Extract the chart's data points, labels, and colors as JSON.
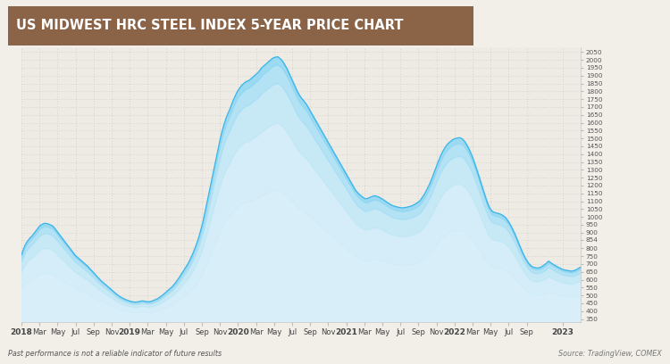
{
  "title": "US MIDWEST HRC STEEL INDEX 5-YEAR PRICE CHART",
  "title_bg_color": "#8B6347",
  "title_text_color": "#FFFFFF",
  "bg_color": "#F2EFE9",
  "plot_bg_color": "#EEEAE4",
  "line_color": "#3BB5E8",
  "fill_color": "#C5E8F7",
  "footer_left": "Past performance is not a reliable indicator of future results",
  "footer_right": "Source: TradingView, COMEX",
  "yticks": [
    350,
    400,
    450,
    500,
    550,
    600,
    650,
    700,
    750,
    800,
    854,
    900,
    950,
    1000,
    1050,
    1100,
    1150,
    1200,
    1250,
    1300,
    1350,
    1400,
    1450,
    1500,
    1550,
    1600,
    1650,
    1700,
    1750,
    1800,
    1850,
    1900,
    1950,
    2000,
    2050
  ],
  "ylim": [
    330,
    2080
  ],
  "x_tick_months": [
    0,
    2,
    4,
    6,
    8,
    10,
    12,
    14,
    16,
    18,
    20,
    22,
    24,
    26,
    28,
    30,
    32,
    34,
    36,
    38,
    40,
    42,
    44,
    46,
    48,
    50,
    52,
    54,
    56,
    60
  ],
  "x_labels": [
    "2018",
    "Mar",
    "May",
    "Jul",
    "Sep",
    "Nov",
    "2019",
    "Mar",
    "May",
    "Jul",
    "Sep",
    "Nov",
    "2020",
    "Mar",
    "May",
    "Jul",
    "Sep",
    "Nov",
    "2021",
    "Mar",
    "May",
    "Jul",
    "Sep",
    "Nov",
    "2022",
    "Mar",
    "May",
    "Jul",
    "Sep",
    "2023"
  ],
  "x_bold": [
    "2018",
    "2019",
    "2020",
    "2021",
    "2022",
    "2023"
  ],
  "total_months": 62,
  "price_data": [
    760,
    790,
    820,
    840,
    855,
    870,
    880,
    895,
    910,
    925,
    940,
    950,
    955,
    960,
    958,
    955,
    950,
    945,
    935,
    920,
    905,
    890,
    875,
    860,
    845,
    830,
    815,
    800,
    785,
    770,
    755,
    745,
    735,
    725,
    715,
    705,
    695,
    685,
    672,
    660,
    648,
    635,
    622,
    610,
    598,
    587,
    577,
    568,
    558,
    548,
    538,
    528,
    518,
    508,
    500,
    492,
    485,
    480,
    474,
    470,
    465,
    462,
    460,
    458,
    458,
    460,
    462,
    465,
    465,
    462,
    460,
    460,
    462,
    465,
    470,
    475,
    480,
    488,
    496,
    505,
    515,
    525,
    535,
    545,
    555,
    568,
    582,
    598,
    615,
    632,
    650,
    668,
    685,
    705,
    728,
    752,
    778,
    808,
    840,
    875,
    915,
    960,
    1010,
    1065,
    1120,
    1175,
    1230,
    1285,
    1340,
    1395,
    1450,
    1505,
    1550,
    1590,
    1625,
    1655,
    1680,
    1710,
    1740,
    1765,
    1790,
    1810,
    1825,
    1840,
    1850,
    1860,
    1865,
    1870,
    1880,
    1890,
    1900,
    1910,
    1920,
    1935,
    1950,
    1960,
    1970,
    1980,
    1990,
    2000,
    2010,
    2015,
    2018,
    2020,
    2010,
    2000,
    1985,
    1965,
    1945,
    1920,
    1895,
    1870,
    1845,
    1820,
    1795,
    1775,
    1758,
    1745,
    1730,
    1715,
    1695,
    1675,
    1655,
    1635,
    1615,
    1595,
    1575,
    1555,
    1535,
    1515,
    1495,
    1475,
    1455,
    1435,
    1415,
    1395,
    1375,
    1355,
    1335,
    1315,
    1295,
    1275,
    1255,
    1235,
    1215,
    1195,
    1175,
    1160,
    1148,
    1138,
    1128,
    1120,
    1115,
    1118,
    1122,
    1128,
    1132,
    1135,
    1132,
    1128,
    1122,
    1115,
    1108,
    1100,
    1092,
    1085,
    1078,
    1072,
    1068,
    1065,
    1062,
    1060,
    1058,
    1058,
    1060,
    1062,
    1065,
    1068,
    1072,
    1078,
    1085,
    1092,
    1100,
    1115,
    1132,
    1150,
    1172,
    1195,
    1220,
    1248,
    1278,
    1308,
    1340,
    1368,
    1395,
    1418,
    1438,
    1455,
    1468,
    1478,
    1488,
    1495,
    1500,
    1502,
    1505,
    1502,
    1495,
    1482,
    1465,
    1445,
    1422,
    1395,
    1365,
    1332,
    1298,
    1262,
    1225,
    1188,
    1152,
    1118,
    1085,
    1060,
    1042,
    1032,
    1028,
    1025,
    1022,
    1018,
    1012,
    1005,
    995,
    980,
    962,
    942,
    920,
    895,
    868,
    840,
    812,
    785,
    760,
    738,
    718,
    702,
    690,
    682,
    678,
    676,
    675,
    678,
    682,
    690,
    698,
    708,
    718,
    710,
    702,
    695,
    688,
    682,
    676,
    670,
    665,
    662,
    660,
    658,
    656,
    655,
    658,
    662,
    668,
    675,
    682
  ]
}
